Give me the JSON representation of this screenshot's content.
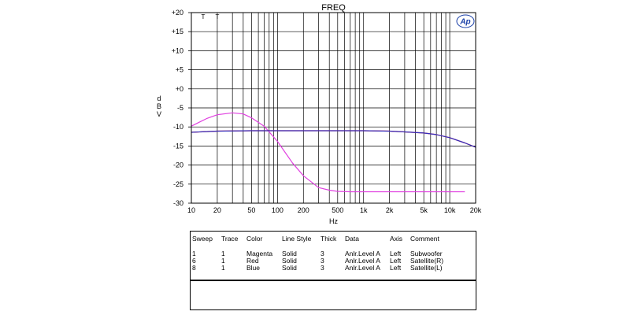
{
  "chart_data": {
    "type": "line",
    "title": "FREQ",
    "xlabel": "Hz",
    "ylabel": "dBV",
    "x_scale": "log",
    "xlim": [
      10,
      20000
    ],
    "ylim": [
      -30,
      20
    ],
    "grid": true,
    "x_ticks": [
      10,
      20,
      50,
      100,
      200,
      500,
      1000,
      2000,
      5000,
      10000,
      20000
    ],
    "x_tick_labels": [
      "10",
      "20",
      "50",
      "100",
      "200",
      "500",
      "1k",
      "2k",
      "5k",
      "10k",
      "20k"
    ],
    "y_ticks": [
      20,
      15,
      10,
      5,
      0,
      -5,
      -10,
      -15,
      -20,
      -25,
      -30
    ],
    "y_tick_labels": [
      "+20",
      "+15",
      "+10",
      "+5",
      "+0",
      "-5",
      "-10",
      "-15",
      "-20",
      "-25",
      "-30"
    ],
    "cursor_marks": [
      "T",
      "T"
    ],
    "logo": "Ap",
    "series": [
      {
        "name": "Subwoofer",
        "color": "#e040e0",
        "x": [
          10,
          15,
          20,
          30,
          40,
          50,
          70,
          100,
          150,
          200,
          300,
          400,
          500,
          700,
          1000,
          2000,
          5000,
          10000,
          15000
        ],
        "y": [
          -9.8,
          -7.8,
          -6.8,
          -6.3,
          -6.6,
          -7.6,
          -9.8,
          -13.8,
          -19.5,
          -22.8,
          -25.9,
          -26.6,
          -26.9,
          -27.0,
          -27.0,
          -27.0,
          -27.0,
          -27.0,
          -27.0
        ]
      },
      {
        "name": "Satellite(R)",
        "color": "#ff0000",
        "x": [
          10,
          20,
          50,
          100,
          200,
          500,
          1000,
          2000,
          3000,
          5000,
          7000,
          10000,
          15000,
          20000
        ],
        "y": [
          -11.4,
          -11.1,
          -11.0,
          -11.0,
          -11.0,
          -11.0,
          -11.0,
          -11.1,
          -11.3,
          -11.6,
          -12.0,
          -12.8,
          -14.2,
          -15.3
        ]
      },
      {
        "name": "Satellite(L)",
        "color": "#3030c0",
        "x": [
          10,
          20,
          50,
          100,
          200,
          500,
          1000,
          2000,
          3000,
          5000,
          7000,
          10000,
          15000,
          20000
        ],
        "y": [
          -11.4,
          -11.1,
          -11.0,
          -11.0,
          -11.0,
          -11.0,
          -11.0,
          -11.1,
          -11.3,
          -11.6,
          -12.0,
          -12.8,
          -14.2,
          -15.3
        ]
      }
    ]
  },
  "legend": {
    "headers": [
      "Sweep",
      "Trace",
      "Color",
      "Line Style",
      "Thick",
      "Data",
      "Axis",
      "Comment"
    ],
    "rows": [
      [
        "1",
        "1",
        "Magenta",
        "Solid",
        "3",
        "Anlr.Level A",
        "Left",
        "Subwoofer"
      ],
      [
        "6",
        "1",
        "Red",
        "Solid",
        "3",
        "Anlr.Level A",
        "Left",
        "Satellite(R)"
      ],
      [
        "8",
        "1",
        "Blue",
        "Solid",
        "3",
        "Anlr.Level A",
        "Left",
        "Satellite(L)"
      ]
    ]
  }
}
